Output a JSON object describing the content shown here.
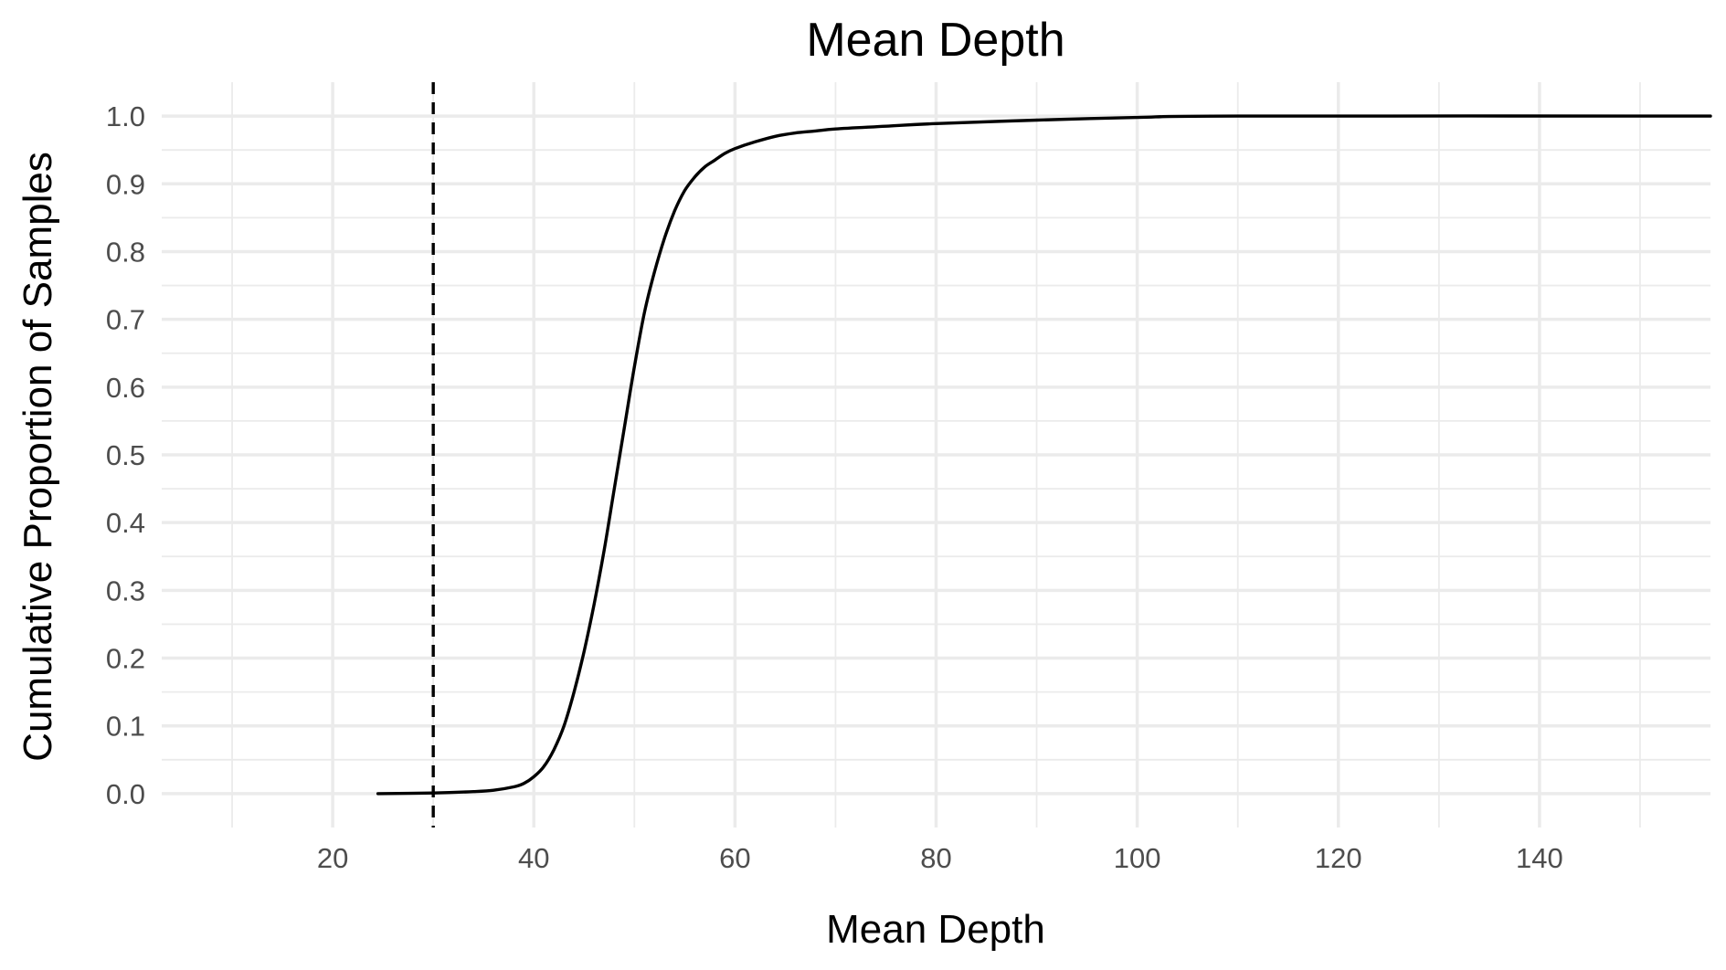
{
  "chart_data": {
    "type": "line",
    "title": "Mean Depth",
    "xlabel": "Mean Depth",
    "ylabel": "Cumulative Proportion of Samples",
    "xlim": [
      3,
      157
    ],
    "ylim": [
      -0.05,
      1.05
    ],
    "x_ticks": [
      20,
      40,
      60,
      80,
      100,
      120,
      140
    ],
    "x_tick_labels": [
      "20",
      "40",
      "60",
      "80",
      "100",
      "120",
      "140"
    ],
    "y_ticks": [
      0.0,
      0.1,
      0.2,
      0.3,
      0.4,
      0.5,
      0.6,
      0.7,
      0.8,
      0.9,
      1.0
    ],
    "y_tick_labels": [
      "0.0",
      "0.1",
      "0.2",
      "0.3",
      "0.4",
      "0.5",
      "0.6",
      "0.7",
      "0.8",
      "0.9",
      "1.0"
    ],
    "grid": true,
    "legend": "none",
    "series": [
      {
        "x": [
          24.5,
          30,
          34,
          36,
          38,
          39,
          40,
          41,
          42,
          43,
          44,
          45,
          46,
          47,
          48,
          49,
          50,
          51,
          52,
          53,
          54,
          55,
          56,
          57,
          58,
          59,
          60,
          62,
          64,
          66,
          68,
          70,
          75,
          80,
          90,
          100,
          110,
          157
        ],
        "y": [
          0.0,
          0.001,
          0.003,
          0.005,
          0.01,
          0.015,
          0.025,
          0.04,
          0.065,
          0.1,
          0.15,
          0.21,
          0.28,
          0.36,
          0.45,
          0.54,
          0.63,
          0.71,
          0.77,
          0.82,
          0.86,
          0.89,
          0.91,
          0.925,
          0.935,
          0.945,
          0.952,
          0.962,
          0.97,
          0.975,
          0.978,
          0.981,
          0.985,
          0.989,
          0.994,
          0.998,
          1.0,
          1.0
        ]
      }
    ],
    "reference_line": {
      "axis": "x",
      "value": 30,
      "style": "dashed",
      "color": "#000000"
    }
  }
}
